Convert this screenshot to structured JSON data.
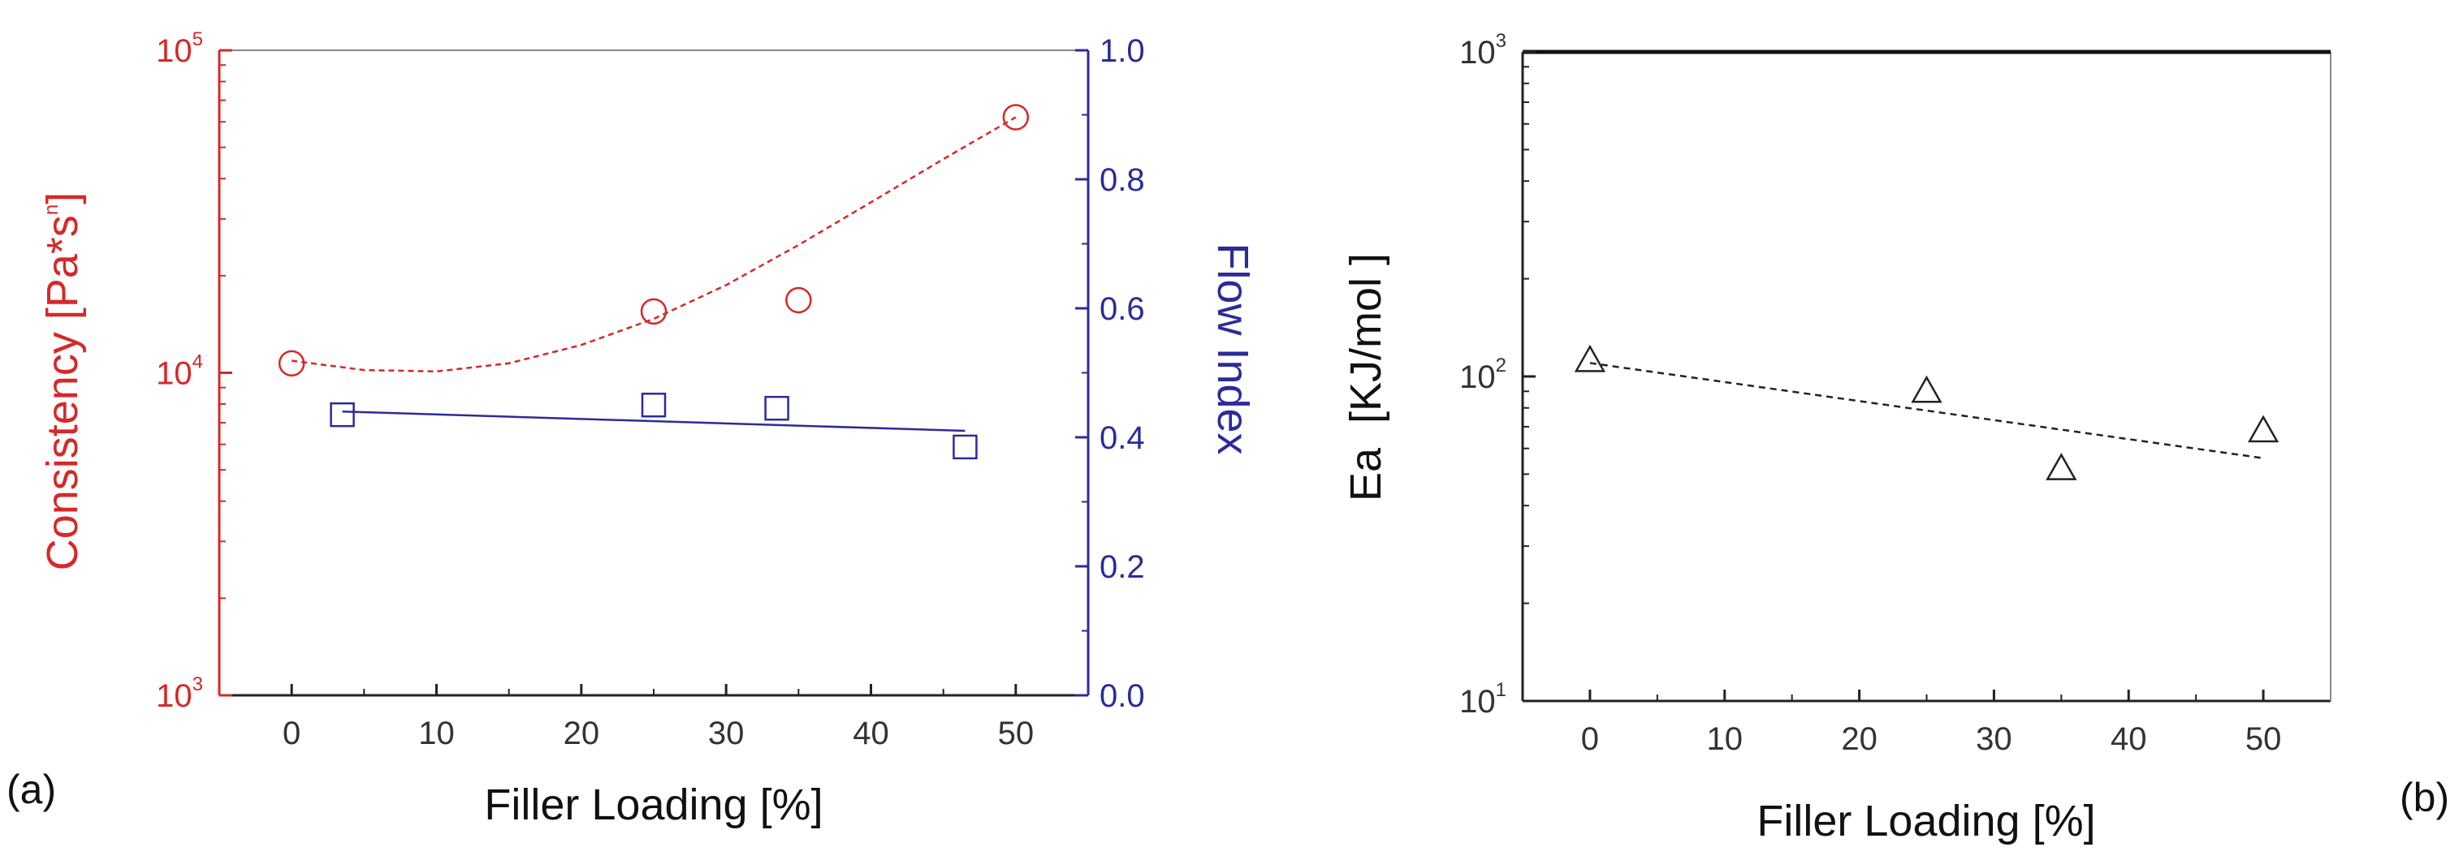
{
  "colors": {
    "red": "#d62828",
    "blue": "#2b2b9a",
    "black": "#111111"
  },
  "chart_data": [
    {
      "panel": "(a)",
      "type": "scatter",
      "xlabel": "Filler Loading [%]",
      "xlim": [
        -5,
        55
      ],
      "xticks": [
        "0",
        "10",
        "20",
        "30",
        "40",
        "50"
      ],
      "left_axis": {
        "label": "Consistency [Pa*s",
        "label_sup": "n",
        "label_end": "]",
        "scale": "log",
        "ylim": [
          1000,
          100000
        ],
        "ticks": [
          {
            "base": "10",
            "exp": "3"
          },
          {
            "base": "10",
            "exp": "4"
          },
          {
            "base": "10",
            "exp": "5"
          }
        ]
      },
      "right_axis": {
        "label": "Flow Index",
        "scale": "linear",
        "ylim": [
          0.0,
          1.0
        ],
        "ticks": [
          "0.0",
          "0.2",
          "0.4",
          "0.6",
          "0.8",
          "1.0"
        ]
      },
      "series": [
        {
          "name": "Consistency",
          "axis": "left",
          "marker": "circle",
          "x": [
            0,
            25,
            35,
            50
          ],
          "y": [
            10700,
            15500,
            16800,
            62000
          ],
          "fit": {
            "type": "polynomial",
            "x": [
              0,
              5,
              10,
              15,
              20,
              25,
              30,
              35,
              40,
              45,
              50
            ],
            "y": [
              10900,
              10200,
              10100,
              10700,
              12200,
              14700,
              18700,
              24900,
              33800,
              46000,
              62000
            ]
          }
        },
        {
          "name": "Flow Index",
          "axis": "right",
          "marker": "square",
          "x": [
            3.5,
            25,
            33.5,
            46.5
          ],
          "y": [
            0.435,
            0.45,
            0.445,
            0.385
          ],
          "fit": {
            "type": "linear",
            "x": [
              3.5,
              46.5
            ],
            "y": [
              0.44,
              0.41
            ]
          }
        }
      ]
    },
    {
      "panel": "(b)",
      "type": "scatter",
      "xlabel": "Filler Loading [%]",
      "ylabel": "Ea  [KJ/mol ]",
      "xlim": [
        -5,
        55
      ],
      "xticks": [
        "0",
        "10",
        "20",
        "30",
        "40",
        "50"
      ],
      "yscale": "log",
      "ylim": [
        10,
        1000
      ],
      "yticks": [
        {
          "base": "10",
          "exp": "1"
        },
        {
          "base": "10",
          "exp": "2"
        },
        {
          "base": "10",
          "exp": "3"
        }
      ],
      "series": [
        {
          "name": "Ea",
          "marker": "triangle",
          "x": [
            0,
            25,
            35,
            50
          ],
          "y": [
            112,
            90,
            52,
            68
          ],
          "fit": {
            "type": "linear",
            "x": [
              0,
              50
            ],
            "y": [
              110,
              56
            ]
          }
        }
      ]
    }
  ]
}
